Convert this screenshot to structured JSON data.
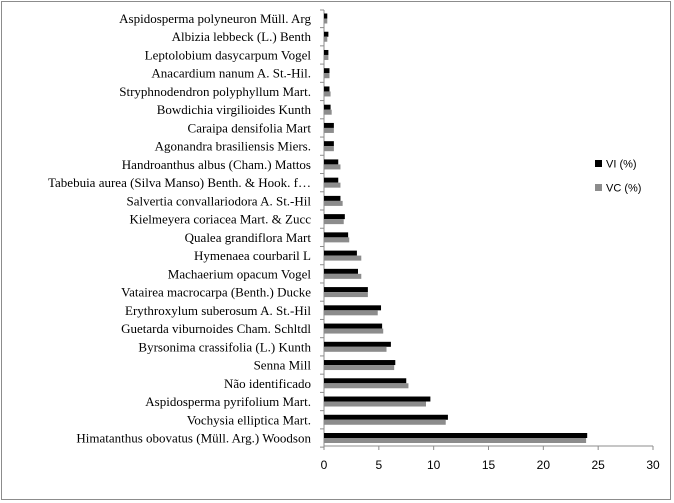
{
  "chart_data": {
    "type": "bar",
    "orientation": "horizontal",
    "categories": [
      "Himatanthus obovatus (Müll. Arg.) Woodson",
      "Vochysia elliptica Mart.",
      "Aspidosperma pyrifolium Mart.",
      "Não identificado",
      "Senna Mill",
      "Byrsonima crassifolia (L.) Kunth",
      "Guetarda viburnoides Cham. Schltdl",
      "Erythroxylum suberosum A. St.-Hil",
      "Vatairea macrocarpa (Benth.) Ducke",
      "Machaerium opacum Vogel",
      "Hymenaea courbaril L",
      "Qualea grandiflora Mart",
      "Kielmeyera coriacea Mart. & Zucc",
      "Salvertia convallariodora A. St.-Hil",
      "Tabebuia aurea (Silva Manso) Benth. & Hook. f…",
      "Handroanthus albus (Cham.) Mattos",
      "Agonandra brasiliensis Miers.",
      "Caraipa densifolia Mart",
      "Bowdichia virgilioides Kunth",
      "Stryphnodendron polyphyllum Mart.",
      "Anacardium nanum A. St.-Hil.",
      "Leptolobium dasycarpum Vogel",
      "Albizia lebbeck (L.) Benth",
      "Aspidosperma polyneuron Müll. Arg"
    ],
    "series": [
      {
        "name": "VI  (%)",
        "color": "#000000",
        "values": [
          24.0,
          11.3,
          9.7,
          7.5,
          6.5,
          6.1,
          5.3,
          5.2,
          4.0,
          3.1,
          3.0,
          2.2,
          1.9,
          1.5,
          1.3,
          1.3,
          0.9,
          0.9,
          0.6,
          0.5,
          0.5,
          0.4,
          0.4,
          0.3
        ]
      },
      {
        "name": "VC (%)",
        "color": "#8c8c8c",
        "values": [
          23.9,
          11.1,
          9.3,
          7.7,
          6.4,
          5.7,
          5.4,
          4.9,
          4.0,
          3.4,
          3.4,
          2.3,
          1.8,
          1.7,
          1.5,
          1.5,
          0.9,
          0.9,
          0.7,
          0.6,
          0.5,
          0.4,
          0.3,
          0.3
        ]
      }
    ],
    "xlim": [
      0,
      30
    ],
    "xticks": [
      "0",
      "5",
      "10",
      "15",
      "20",
      "25",
      "30"
    ],
    "title": "",
    "xlabel": "",
    "ylabel": "",
    "grid": false,
    "legend_position": "right"
  }
}
